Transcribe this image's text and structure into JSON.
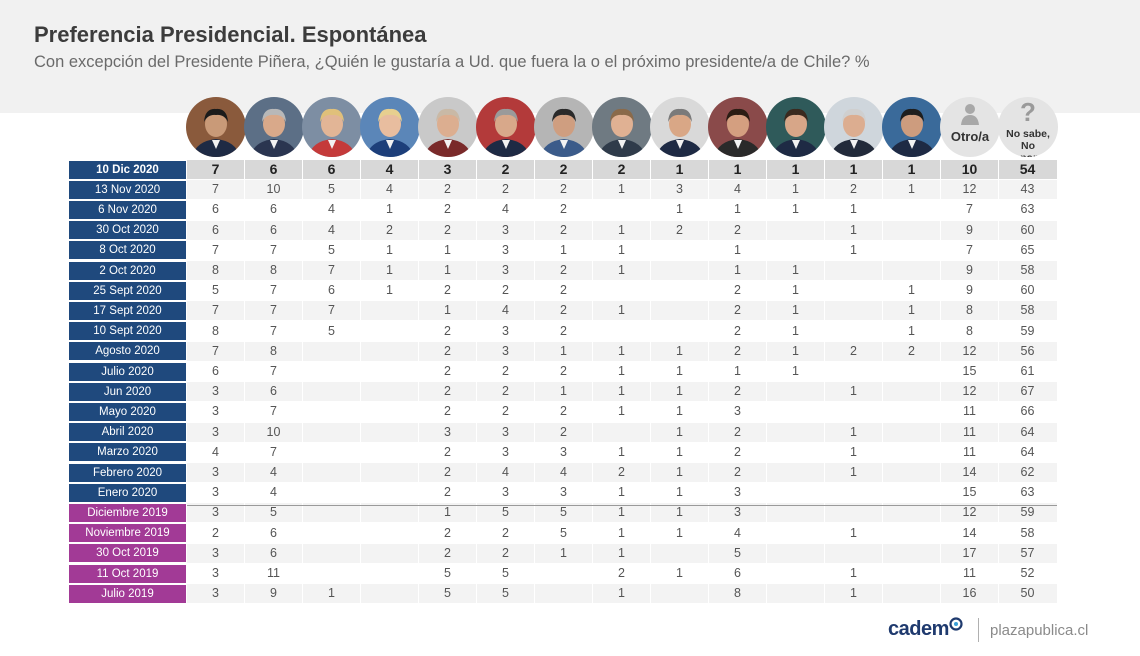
{
  "header": {
    "title": "Preferencia Presidencial. Espontánea",
    "subtitle": "Con excepción del Presidente Piñera, ¿Quién le gustaría a Ud. que fuera la o el próximo presidente/a de Chile? %"
  },
  "columns": [
    {
      "type": "photo",
      "skin": "#c99a78",
      "hair": "#1b1b1b",
      "bg": "#8a5a3c",
      "suit": "#1e2a44"
    },
    {
      "type": "photo",
      "skin": "#d9a98a",
      "hair": "#b8b8b8",
      "bg": "#5c6f86",
      "suit": "#2a3550"
    },
    {
      "type": "photo",
      "skin": "#e2b596",
      "hair": "#e0c07a",
      "bg": "#7d8ea3",
      "suit": "#c43a3a"
    },
    {
      "type": "photo",
      "skin": "#e8bd9f",
      "hair": "#e7cf8f",
      "bg": "#5b86b8",
      "suit": "#1d3f7a"
    },
    {
      "type": "photo",
      "skin": "#dcae90",
      "hair": "#c9b9a6",
      "bg": "#c9c9c9",
      "suit": "#7a2a2a"
    },
    {
      "type": "photo",
      "skin": "#d8a88a",
      "hair": "#9a9a9a",
      "bg": "#b33a3a",
      "suit": "#1e2a44"
    },
    {
      "type": "photo",
      "skin": "#cf9e80",
      "hair": "#2a2a2a",
      "bg": "#b5b5b5",
      "suit": "#3b5b8a"
    },
    {
      "type": "photo",
      "skin": "#e0b193",
      "hair": "#8a6a4a",
      "bg": "#6f7a82",
      "suit": "#2f3b4a"
    },
    {
      "type": "photo",
      "skin": "#d9a786",
      "hair": "#7a7a7a",
      "bg": "#d9d9d9",
      "suit": "#1e2a44"
    },
    {
      "type": "photo",
      "skin": "#d49f80",
      "hair": "#2b1d14",
      "bg": "#8a4a4a",
      "suit": "#2a2a2a"
    },
    {
      "type": "photo",
      "skin": "#d7a688",
      "hair": "#3a2a1f",
      "bg": "#2f5a5a",
      "suit": "#1e2a44"
    },
    {
      "type": "photo",
      "skin": "#dcad90",
      "hair": "#cfcfcf",
      "bg": "#cfd6dc",
      "suit": "#222a3a"
    },
    {
      "type": "photo",
      "skin": "#cd9c7e",
      "hair": "#1e1e1e",
      "bg": "#3a6a9a",
      "suit": "#1e2a44"
    },
    {
      "type": "generic",
      "label": "Otro/a",
      "icon": "person-icon"
    },
    {
      "type": "generic",
      "label": "No sabe,\nNo responde",
      "label_line1": "No sabe,",
      "label_line2": "No responde",
      "icon": "question-icon"
    }
  ],
  "rows": [
    {
      "label": "10 Dic 2020",
      "group": "2020",
      "values": [
        "7",
        "6",
        "6",
        "4",
        "3",
        "2",
        "2",
        "2",
        "1",
        "1",
        "1",
        "1",
        "1",
        "10",
        "54"
      ]
    },
    {
      "label": "13 Nov 2020",
      "group": "2020",
      "values": [
        "7",
        "10",
        "5",
        "4",
        "2",
        "2",
        "2",
        "1",
        "3",
        "4",
        "1",
        "2",
        "1",
        "12",
        "43"
      ]
    },
    {
      "label": "6 Nov 2020",
      "group": "2020",
      "values": [
        "6",
        "6",
        "4",
        "1",
        "2",
        "4",
        "2",
        "",
        "1",
        "1",
        "1",
        "1",
        "",
        "7",
        "63"
      ]
    },
    {
      "label": "30 Oct 2020",
      "group": "2020",
      "values": [
        "6",
        "6",
        "4",
        "2",
        "2",
        "3",
        "2",
        "1",
        "2",
        "2",
        "",
        "1",
        "",
        "9",
        "60"
      ]
    },
    {
      "label": "8 Oct 2020",
      "group": "2020",
      "values": [
        "7",
        "7",
        "5",
        "1",
        "1",
        "3",
        "1",
        "1",
        "",
        "1",
        "",
        "1",
        "",
        "7",
        "65"
      ]
    },
    {
      "label": "2 Oct 2020",
      "group": "2020",
      "values": [
        "8",
        "8",
        "7",
        "1",
        "1",
        "3",
        "2",
        "1",
        "",
        "1",
        "1",
        "",
        "",
        "9",
        "58"
      ]
    },
    {
      "label": "25 Sept 2020",
      "group": "2020",
      "values": [
        "5",
        "7",
        "6",
        "1",
        "2",
        "2",
        "2",
        "",
        "",
        "2",
        "1",
        "",
        "1",
        "9",
        "60"
      ]
    },
    {
      "label": "17 Sept 2020",
      "group": "2020",
      "values": [
        "7",
        "7",
        "7",
        "",
        "1",
        "4",
        "2",
        "1",
        "",
        "2",
        "1",
        "",
        "1",
        "8",
        "58"
      ]
    },
    {
      "label": "10 Sept 2020",
      "group": "2020",
      "values": [
        "8",
        "7",
        "5",
        "",
        "2",
        "3",
        "2",
        "",
        "",
        "2",
        "1",
        "",
        "1",
        "8",
        "59"
      ]
    },
    {
      "label": "Agosto 2020",
      "group": "2020",
      "values": [
        "7",
        "8",
        "",
        "",
        "2",
        "3",
        "1",
        "1",
        "1",
        "2",
        "1",
        "2",
        "2",
        "12",
        "56"
      ]
    },
    {
      "label": "Julio 2020",
      "group": "2020",
      "values": [
        "6",
        "7",
        "",
        "",
        "2",
        "2",
        "2",
        "1",
        "1",
        "1",
        "1",
        "",
        "",
        "15",
        "61"
      ]
    },
    {
      "label": "Jun 2020",
      "group": "2020",
      "values": [
        "3",
        "6",
        "",
        "",
        "2",
        "2",
        "1",
        "1",
        "1",
        "2",
        "",
        "1",
        "",
        "12",
        "67"
      ]
    },
    {
      "label": "Mayo 2020",
      "group": "2020",
      "values": [
        "3",
        "7",
        "",
        "",
        "2",
        "2",
        "2",
        "1",
        "1",
        "3",
        "",
        "",
        "",
        "11",
        "66"
      ]
    },
    {
      "label": "Abril 2020",
      "group": "2020",
      "values": [
        "3",
        "10",
        "",
        "",
        "3",
        "3",
        "2",
        "",
        "1",
        "2",
        "",
        "1",
        "",
        "11",
        "64"
      ]
    },
    {
      "label": "Marzo 2020",
      "group": "2020",
      "values": [
        "4",
        "7",
        "",
        "",
        "2",
        "3",
        "3",
        "1",
        "1",
        "2",
        "",
        "1",
        "",
        "11",
        "64"
      ]
    },
    {
      "label": "Febrero 2020",
      "group": "2020",
      "values": [
        "3",
        "4",
        "",
        "",
        "2",
        "4",
        "4",
        "2",
        "1",
        "2",
        "",
        "1",
        "",
        "14",
        "62"
      ]
    },
    {
      "label": "Enero 2020",
      "group": "2020",
      "values": [
        "3",
        "4",
        "",
        "",
        "2",
        "3",
        "3",
        "1",
        "1",
        "3",
        "",
        "",
        "",
        "15",
        "63"
      ]
    },
    {
      "label": "Diciembre 2019",
      "group": "2019",
      "values": [
        "3",
        "5",
        "",
        "",
        "1",
        "5",
        "5",
        "1",
        "1",
        "3",
        "",
        "",
        "",
        "12",
        "59"
      ]
    },
    {
      "label": "Noviembre 2019",
      "group": "2019",
      "values": [
        "2",
        "6",
        "",
        "",
        "2",
        "2",
        "5",
        "1",
        "1",
        "4",
        "",
        "1",
        "",
        "14",
        "58"
      ]
    },
    {
      "label": "30 Oct 2019",
      "group": "2019",
      "values": [
        "3",
        "6",
        "",
        "",
        "2",
        "2",
        "1",
        "1",
        "",
        "5",
        "",
        "",
        "",
        "17",
        "57"
      ]
    },
    {
      "label": "11 Oct 2019",
      "group": "2019",
      "values": [
        "3",
        "11",
        "",
        "",
        "5",
        "5",
        "",
        "2",
        "1",
        "6",
        "",
        "1",
        "",
        "11",
        "52"
      ]
    },
    {
      "label": "Julio 2019",
      "group": "2019",
      "values": [
        "3",
        "9",
        "1",
        "",
        "5",
        "5",
        "",
        "1",
        "",
        "8",
        "",
        "1",
        "",
        "16",
        "50"
      ]
    }
  ],
  "colors": {
    "blue": "#1f497d",
    "purple": "#a23a96",
    "logo": "#1f3a6e"
  },
  "footer": {
    "logo": "cadem",
    "site": "plazapublica.cl"
  }
}
